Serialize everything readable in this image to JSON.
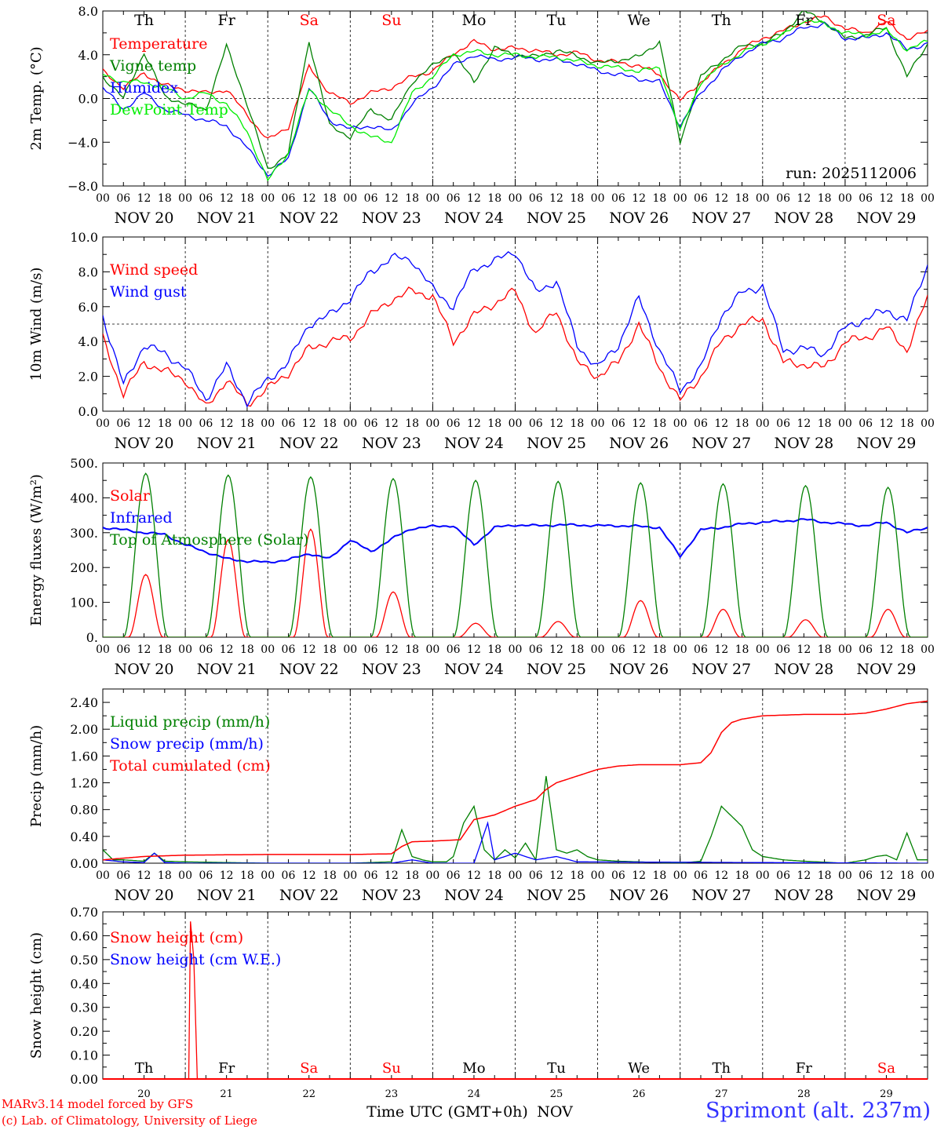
{
  "chart_data": [
    {
      "type": "line",
      "title": "",
      "ylabel": "2m Temp. (°C)",
      "ylim": [
        -8,
        8
      ],
      "yticks": [
        -8,
        -4,
        0,
        4,
        8
      ],
      "ytick_labels": [
        "−8.0",
        "−4.0",
        "0.0",
        "4.0",
        "8.0"
      ],
      "ref_line": 0,
      "annotation": "run: 2025112006",
      "days": [
        "Th",
        "Fr",
        "Sa",
        "Su",
        "Mo",
        "Tu",
        "We",
        "Th",
        "Fr",
        "Sa"
      ],
      "day_colors": [
        "#000000",
        "#000000",
        "#ff0000",
        "#ff0000",
        "#000000",
        "#000000",
        "#000000",
        "#000000",
        "#000000",
        "#ff0000"
      ],
      "series": [
        {
          "name": "Temperature",
          "color": "#ff0000",
          "x": [
            0,
            6,
            12,
            18,
            24,
            30,
            36,
            42,
            48,
            54,
            60,
            66,
            72,
            78,
            84,
            90,
            96,
            102,
            108,
            114,
            120,
            126,
            132,
            138,
            144,
            150,
            156,
            162,
            168,
            174,
            180,
            186,
            192,
            198,
            204,
            210,
            216,
            222,
            228,
            234,
            240
          ],
          "values": [
            2.5,
            1.0,
            2.3,
            1.2,
            0.8,
            0.5,
            0.8,
            -1.5,
            -3.8,
            -2.6,
            2.9,
            0.5,
            -0.4,
            0.5,
            1.0,
            2.0,
            2.5,
            4.1,
            5.2,
            4.5,
            4.6,
            4.4,
            4.0,
            4.2,
            3.5,
            3.3,
            3.0,
            2.2,
            -0.2,
            1.5,
            3.0,
            4.5,
            5.5,
            6.2,
            7.0,
            7.5,
            6.4,
            6.0,
            7.0,
            5.5,
            6.1
          ]
        },
        {
          "name": "Vigne temp",
          "color": "#008000",
          "x": [
            0,
            6,
            12,
            18,
            24,
            30,
            36,
            42,
            48,
            54,
            60,
            66,
            72,
            78,
            84,
            90,
            96,
            102,
            108,
            114,
            120,
            126,
            132,
            138,
            144,
            150,
            156,
            162,
            168,
            174,
            180,
            186,
            192,
            198,
            204,
            210,
            216,
            222,
            228,
            234,
            240
          ],
          "values": [
            2.0,
            0.0,
            4.2,
            0.2,
            -0.5,
            -1.0,
            4.8,
            -0.5,
            -6.5,
            -5.0,
            5.3,
            -2.5,
            -3.5,
            -1.0,
            -2.0,
            1.5,
            3.0,
            4.2,
            1.5,
            4.6,
            4.0,
            3.8,
            4.4,
            3.9,
            3.2,
            3.5,
            3.8,
            5.2,
            -4.0,
            2.0,
            3.5,
            4.8,
            5.0,
            6.0,
            8.0,
            7.0,
            5.5,
            5.8,
            6.5,
            2.0,
            5.0
          ]
        },
        {
          "name": "Humidex",
          "color": "#0000ff",
          "x": [
            0,
            6,
            12,
            18,
            24,
            30,
            36,
            42,
            48,
            54,
            60,
            66,
            72,
            78,
            84,
            90,
            96,
            102,
            108,
            114,
            120,
            126,
            132,
            138,
            144,
            150,
            156,
            162,
            168,
            174,
            180,
            186,
            192,
            198,
            204,
            210,
            216,
            222,
            228,
            234,
            240
          ],
          "values": [
            1.0,
            -1.0,
            0.5,
            -1.0,
            -1.5,
            -2.0,
            -2.5,
            -4.5,
            -7.0,
            -5.5,
            1.0,
            -2.0,
            -2.8,
            -2.5,
            -3.0,
            -0.5,
            1.0,
            3.0,
            4.0,
            3.5,
            3.8,
            3.6,
            3.5,
            3.2,
            2.5,
            2.2,
            1.8,
            1.5,
            -2.5,
            0.5,
            2.5,
            4.0,
            5.0,
            5.5,
            6.5,
            6.8,
            5.5,
            5.5,
            6.0,
            4.5,
            5.0
          ]
        },
        {
          "name": "DewPoint Temp",
          "color": "#00ee00",
          "x": [
            0,
            6,
            12,
            18,
            24,
            30,
            36,
            42,
            48,
            54,
            60,
            66,
            72,
            78,
            84,
            90,
            96,
            102,
            108,
            114,
            120,
            126,
            132,
            138,
            144,
            150,
            156,
            162,
            168,
            174,
            180,
            186,
            192,
            198,
            204,
            210,
            216,
            222,
            228,
            234,
            240
          ],
          "values": [
            2.2,
            1.5,
            1.5,
            1.0,
            0.0,
            0.5,
            -0.5,
            -3.0,
            -7.5,
            -5.0,
            0.8,
            -1.0,
            -2.5,
            -3.5,
            -4.0,
            0.5,
            2.0,
            4.0,
            4.3,
            4.0,
            4.0,
            3.8,
            3.8,
            3.4,
            3.0,
            2.8,
            2.5,
            2.8,
            -3.0,
            1.5,
            3.0,
            4.2,
            5.0,
            5.8,
            7.2,
            6.8,
            6.0,
            5.8,
            6.2,
            4.5,
            5.2
          ]
        }
      ]
    },
    {
      "type": "line",
      "ylabel": "10m Wind (m/s)",
      "ylim": [
        0,
        10
      ],
      "yticks": [
        0,
        2,
        4,
        6,
        8,
        10
      ],
      "ytick_labels": [
        "0.0",
        "2.0",
        "4.0",
        "6.0",
        "8.0",
        "10.0"
      ],
      "ref_line": 5,
      "series": [
        {
          "name": "Wind speed",
          "color": "#ff0000",
          "x": [
            0,
            6,
            12,
            18,
            24,
            30,
            36,
            42,
            48,
            54,
            60,
            66,
            72,
            78,
            84,
            90,
            96,
            102,
            108,
            114,
            120,
            126,
            132,
            138,
            144,
            150,
            156,
            162,
            168,
            174,
            180,
            186,
            192,
            198,
            204,
            210,
            216,
            222,
            228,
            234,
            240
          ],
          "values": [
            4.2,
            1.0,
            2.8,
            2.3,
            1.8,
            0.2,
            1.8,
            0.4,
            1.3,
            2.2,
            3.6,
            4.0,
            4.2,
            5.5,
            6.4,
            6.9,
            6.6,
            4.0,
            5.5,
            6.2,
            6.9,
            4.4,
            5.8,
            2.8,
            2.0,
            2.8,
            5.0,
            2.5,
            0.6,
            2.0,
            4.0,
            5.0,
            5.3,
            2.8,
            2.7,
            2.5,
            4.0,
            4.2,
            4.8,
            3.5,
            6.5
          ]
        },
        {
          "name": "Wind gust",
          "color": "#0000ff",
          "x": [
            0,
            6,
            12,
            18,
            24,
            30,
            36,
            42,
            48,
            54,
            60,
            66,
            72,
            78,
            84,
            90,
            96,
            102,
            108,
            114,
            120,
            126,
            132,
            138,
            144,
            150,
            156,
            162,
            168,
            174,
            180,
            186,
            192,
            198,
            204,
            210,
            216,
            222,
            228,
            234,
            240
          ],
          "values": [
            5.5,
            1.5,
            3.8,
            3.3,
            2.5,
            0.7,
            2.6,
            0.5,
            1.8,
            2.8,
            5.0,
            5.5,
            6.5,
            8.0,
            8.8,
            8.7,
            7.0,
            6.0,
            8.2,
            8.6,
            9.2,
            6.8,
            7.5,
            3.8,
            2.5,
            3.8,
            6.5,
            3.5,
            1.2,
            2.5,
            5.5,
            6.8,
            7.2,
            3.5,
            3.6,
            3.3,
            4.8,
            5.3,
            5.8,
            5.2,
            8.4
          ]
        }
      ]
    },
    {
      "type": "line",
      "ylabel": "Energy fluxes (W/m²)",
      "ylim": [
        0,
        500
      ],
      "yticks": [
        0,
        100,
        200,
        300,
        400,
        500
      ],
      "ytick_labels": [
        "0.",
        "100.",
        "200.",
        "300.",
        "400.",
        "500."
      ],
      "series": [
        {
          "name": "Solar",
          "color": "#ff0000",
          "solar_peaks": [
            180,
            280,
            310,
            130,
            40,
            45,
            105,
            80,
            50,
            80
          ]
        },
        {
          "name": "Infrared",
          "color": "#0000ff",
          "x": [
            0,
            6,
            12,
            18,
            24,
            30,
            36,
            42,
            48,
            54,
            60,
            66,
            72,
            78,
            84,
            90,
            96,
            102,
            108,
            114,
            120,
            126,
            132,
            138,
            144,
            150,
            156,
            162,
            168,
            174,
            180,
            186,
            192,
            198,
            204,
            210,
            216,
            222,
            228,
            234,
            240
          ],
          "values": [
            315,
            308,
            300,
            295,
            265,
            245,
            225,
            218,
            215,
            222,
            240,
            225,
            280,
            245,
            282,
            312,
            318,
            320,
            265,
            315,
            322,
            320,
            322,
            322,
            320,
            320,
            318,
            315,
            232,
            308,
            315,
            325,
            330,
            333,
            338,
            330,
            325,
            320,
            330,
            300,
            315
          ]
        },
        {
          "name": "Top of Atmosphere (Solar)",
          "color": "#008000",
          "toa_peaks": [
            470,
            465,
            460,
            455,
            450,
            447,
            443,
            440,
            435,
            430
          ]
        }
      ]
    },
    {
      "type": "line",
      "ylabel": "Precip (mm/h)",
      "ylim": [
        0,
        2.6
      ],
      "yticks": [
        0,
        0.4,
        0.8,
        1.2,
        1.6,
        2.0,
        2.4
      ],
      "ytick_labels": [
        "0.00",
        "0.40",
        "0.80",
        "1.20",
        "1.60",
        "2.00",
        "2.40"
      ],
      "series": [
        {
          "name": "Liquid precip (mm/h)",
          "color": "#008000",
          "x": [
            0,
            3,
            6,
            12,
            15,
            18,
            24,
            48,
            72,
            84,
            87,
            90,
            93,
            96,
            100,
            102,
            105,
            108,
            111,
            114,
            117,
            120,
            123,
            126,
            129,
            132,
            135,
            138,
            141,
            144,
            150,
            156,
            168,
            174,
            177,
            180,
            183,
            186,
            189,
            192,
            198,
            204,
            216,
            222,
            225,
            228,
            231,
            234,
            237,
            240
          ],
          "values": [
            0.2,
            0.05,
            0.05,
            0.03,
            0.15,
            0.03,
            0.02,
            0.0,
            0.0,
            0.02,
            0.5,
            0.1,
            0.05,
            0.02,
            0.02,
            0.1,
            0.6,
            0.85,
            0.2,
            0.05,
            0.2,
            0.08,
            0.3,
            0.05,
            1.3,
            0.2,
            0.15,
            0.2,
            0.1,
            0.05,
            0.03,
            0.02,
            0.0,
            0.03,
            0.4,
            0.85,
            0.7,
            0.55,
            0.2,
            0.1,
            0.05,
            0.03,
            0.0,
            0.05,
            0.1,
            0.12,
            0.05,
            0.45,
            0.05,
            0.05
          ]
        },
        {
          "name": "Snow precip (mm/h)",
          "color": "#0000ff",
          "x": [
            0,
            6,
            12,
            15,
            18,
            24,
            84,
            90,
            96,
            108,
            112,
            114,
            120,
            126,
            132,
            138,
            240
          ],
          "values": [
            0.05,
            0.02,
            0.01,
            0.15,
            0.01,
            0.0,
            0.0,
            0.05,
            0.0,
            0.0,
            0.6,
            0.05,
            0.15,
            0.05,
            0.1,
            0.02,
            0.0
          ]
        },
        {
          "name": "Total cumulated (cm)",
          "color": "#ff0000",
          "x": [
            0,
            12,
            24,
            48,
            72,
            84,
            87,
            90,
            96,
            104,
            108,
            114,
            120,
            126,
            129,
            132,
            138,
            144,
            150,
            156,
            168,
            174,
            177,
            180,
            183,
            186,
            192,
            204,
            216,
            222,
            228,
            234,
            240
          ],
          "values": [
            0.05,
            0.1,
            0.12,
            0.13,
            0.13,
            0.14,
            0.25,
            0.32,
            0.33,
            0.35,
            0.65,
            0.72,
            0.85,
            0.95,
            1.1,
            1.2,
            1.3,
            1.4,
            1.45,
            1.47,
            1.47,
            1.5,
            1.65,
            1.95,
            2.1,
            2.15,
            2.2,
            2.22,
            2.22,
            2.24,
            2.3,
            2.38,
            2.42
          ]
        }
      ]
    },
    {
      "type": "line",
      "ylabel": "Snow height (cm)",
      "ylim": [
        0,
        0.7
      ],
      "yticks": [
        0,
        0.1,
        0.2,
        0.3,
        0.4,
        0.5,
        0.6,
        0.7
      ],
      "ytick_labels": [
        "0.00",
        "0.10",
        "0.20",
        "0.30",
        "0.40",
        "0.50",
        "0.60",
        "0.70"
      ],
      "xlabel": "Time UTC (GMT+0h)",
      "xlabel_month": "NOV",
      "day_numbers": [
        "20",
        "21",
        "22",
        "23",
        "24",
        "25",
        "26",
        "27",
        "28",
        "29"
      ],
      "series": [
        {
          "name": "Snow height (cm)",
          "color": "#ff0000",
          "x": [
            0,
            25,
            25.5,
            26.5,
            27.5,
            240
          ],
          "values": [
            0,
            0,
            0.66,
            0.5,
            0,
            0
          ]
        },
        {
          "name": "Snow height (cm W.E.)",
          "color": "#0000ff",
          "x": [
            0,
            240
          ],
          "values": [
            0,
            0
          ]
        }
      ]
    }
  ],
  "common": {
    "hour_ticks": [
      "00",
      "06",
      "12",
      "18"
    ],
    "last_hour": "00",
    "dates": [
      "NOV 20",
      "NOV 21",
      "NOV 22",
      "NOV 23",
      "NOV 24",
      "NOV 25",
      "NOV 26",
      "NOV 27",
      "NOV 28",
      "NOV 29"
    ]
  },
  "footer": {
    "credit_line1": "MARv3.14 model forced by GFS",
    "credit_line2": "(c) Lab. of Climatology, University of Liege",
    "station": "Sprimont (alt. 237m)"
  }
}
